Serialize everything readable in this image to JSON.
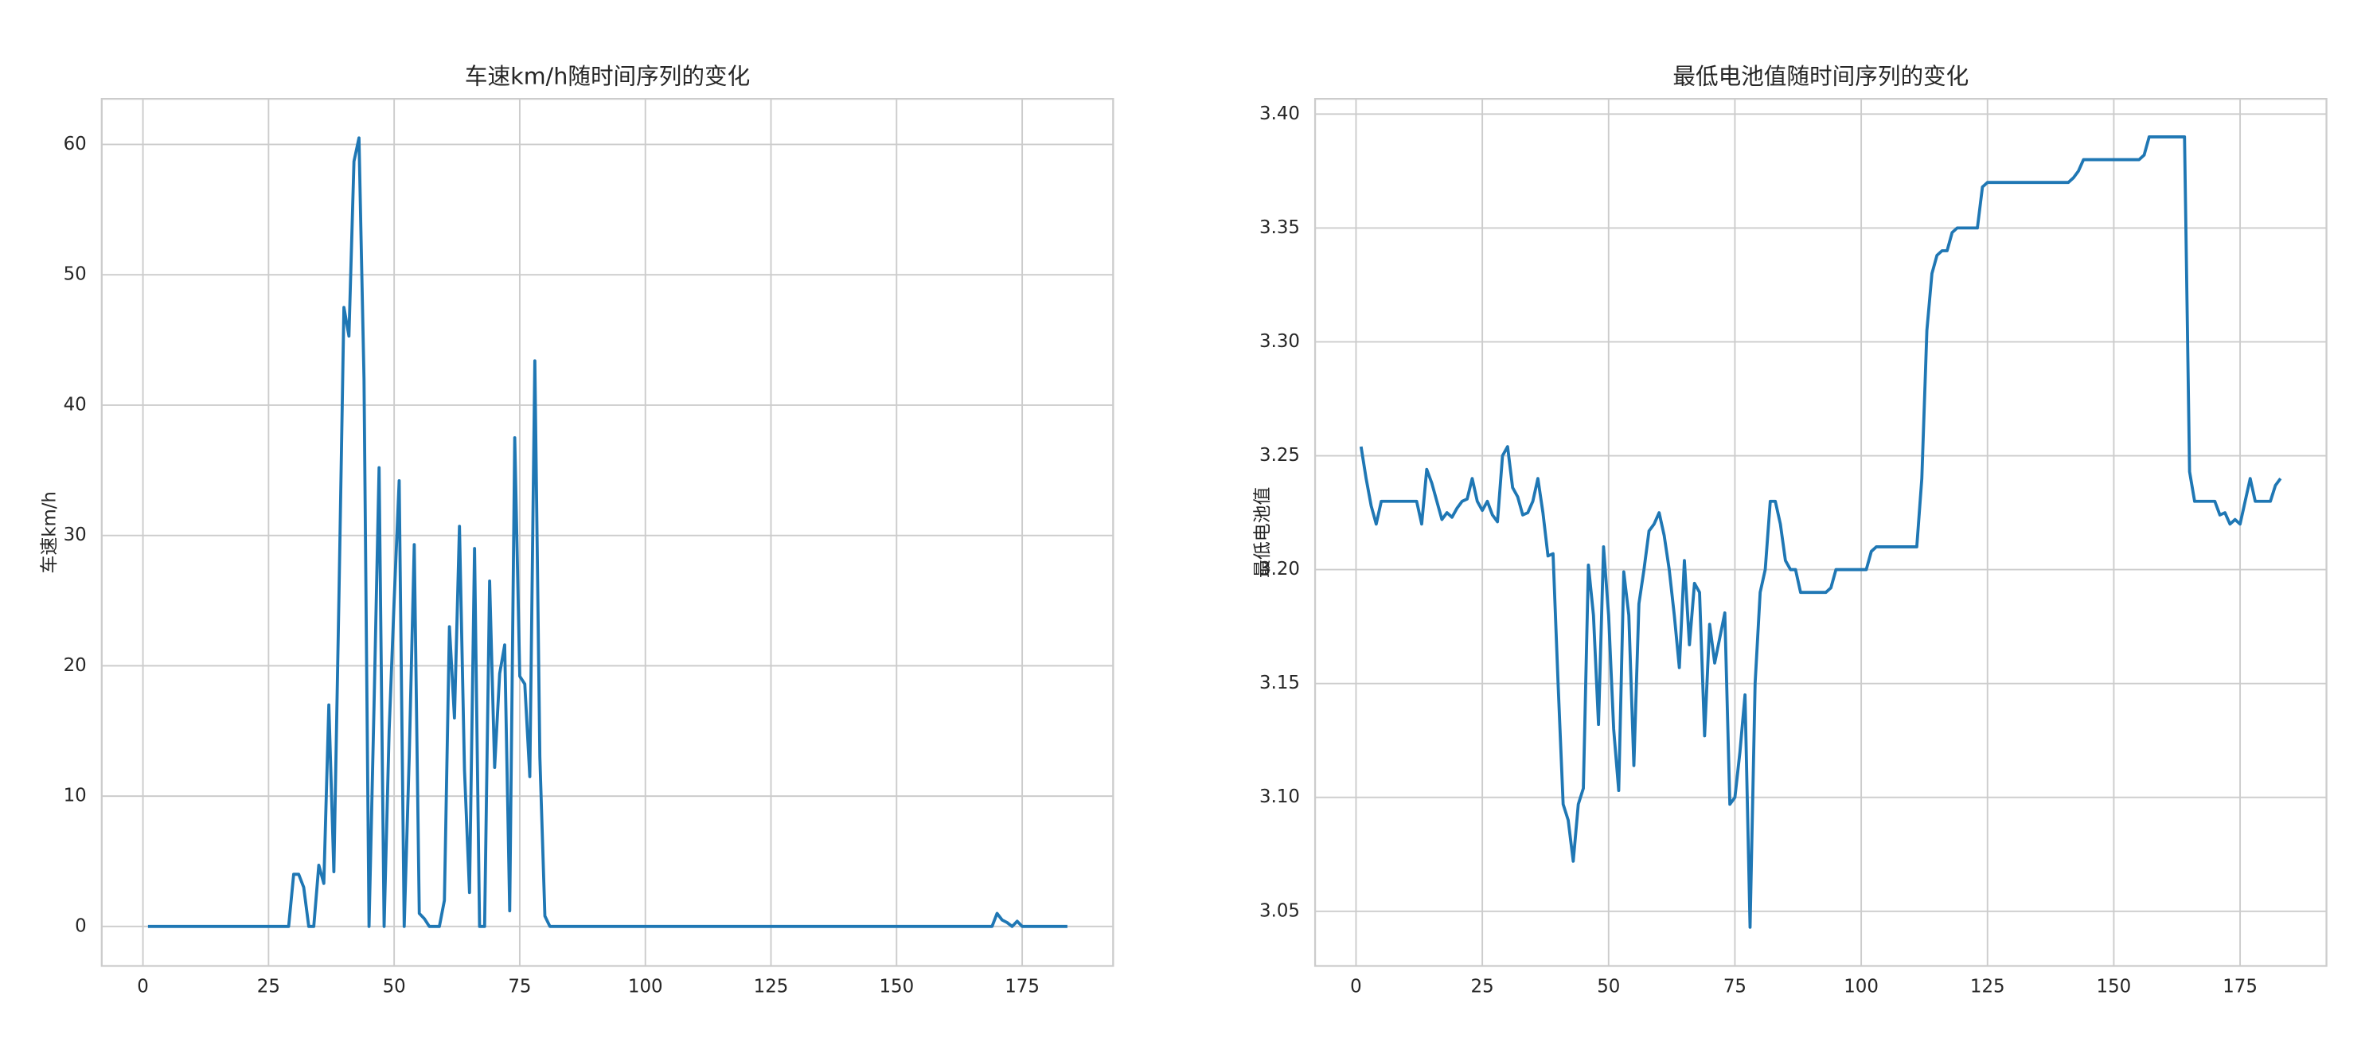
{
  "chart_data": [
    {
      "type": "line",
      "title": "车速km/h随时间序列的变化",
      "ylabel": "车速km/h",
      "color": "#1f77b4",
      "grid": true,
      "x": [
        1,
        2,
        3,
        4,
        5,
        6,
        7,
        8,
        9,
        10,
        11,
        12,
        13,
        14,
        15,
        16,
        17,
        18,
        19,
        20,
        21,
        22,
        23,
        24,
        25,
        26,
        27,
        28,
        29,
        30,
        31,
        32,
        33,
        34,
        35,
        36,
        37,
        38,
        39,
        40,
        41,
        42,
        43,
        44,
        45,
        46,
        47,
        48,
        49,
        50,
        51,
        52,
        53,
        54,
        55,
        56,
        57,
        58,
        59,
        60,
        61,
        62,
        63,
        64,
        65,
        66,
        67,
        68,
        69,
        70,
        71,
        72,
        73,
        74,
        75,
        76,
        77,
        78,
        79,
        80,
        81,
        82,
        83,
        84,
        85,
        86,
        87,
        88,
        89,
        90,
        91,
        92,
        93,
        94,
        95,
        96,
        97,
        98,
        99,
        100,
        101,
        102,
        103,
        104,
        105,
        106,
        107,
        108,
        109,
        110,
        111,
        112,
        113,
        114,
        115,
        116,
        117,
        118,
        119,
        120,
        121,
        122,
        123,
        124,
        125,
        126,
        127,
        128,
        129,
        130,
        131,
        132,
        133,
        134,
        135,
        136,
        137,
        138,
        139,
        140,
        141,
        142,
        143,
        144,
        145,
        146,
        147,
        148,
        149,
        150,
        151,
        152,
        153,
        154,
        155,
        156,
        157,
        158,
        159,
        160,
        161,
        162,
        163,
        164,
        165,
        166,
        167,
        168,
        169,
        170,
        171,
        172,
        173,
        174,
        175,
        176,
        177,
        178,
        179,
        180,
        181,
        182,
        183,
        184
      ],
      "values": [
        0,
        0,
        0,
        0,
        0,
        0,
        0,
        0,
        0,
        0,
        0,
        0,
        0,
        0,
        0,
        0,
        0,
        0,
        0,
        0,
        0,
        0,
        0,
        0,
        0,
        0,
        0,
        0,
        0,
        4,
        4,
        3,
        0,
        0,
        4.7,
        3.3,
        17,
        4.2,
        25,
        47.5,
        45.3,
        58.7,
        60.5,
        42,
        0,
        17,
        35.2,
        0,
        15,
        25,
        34.2,
        0,
        13,
        29.3,
        1,
        0.6,
        0,
        0,
        0,
        2,
        23,
        16,
        30.7,
        12,
        2.6,
        29,
        0,
        0,
        26.5,
        12.2,
        19.4,
        21.6,
        1.2,
        37.5,
        19.2,
        18.6,
        11.5,
        43.4,
        13,
        0.8,
        0,
        0,
        0,
        0,
        0,
        0,
        0,
        0,
        0,
        0,
        0,
        0,
        0,
        0,
        0,
        0,
        0,
        0,
        0,
        0,
        0,
        0,
        0,
        0,
        0,
        0,
        0,
        0,
        0,
        0,
        0,
        0,
        0,
        0,
        0,
        0,
        0,
        0,
        0,
        0,
        0,
        0,
        0,
        0,
        0,
        0,
        0,
        0,
        0,
        0,
        0,
        0,
        0,
        0,
        0,
        0,
        0,
        0,
        0,
        0,
        0,
        0,
        0,
        0,
        0,
        0,
        0,
        0,
        0,
        0,
        0,
        0,
        0,
        0,
        0,
        0,
        0,
        0,
        0,
        0,
        0,
        0,
        0,
        0,
        0,
        0,
        0,
        0,
        0,
        1,
        0.5,
        0.3,
        0,
        0.4,
        0,
        0,
        0,
        0,
        0,
        0,
        0,
        0,
        0,
        0
      ],
      "xlim": [
        -8.2,
        193.1
      ],
      "xticks": [
        0,
        25,
        50,
        75,
        100,
        125,
        150,
        175
      ],
      "ylim": [
        -3.03,
        63.5
      ],
      "yticks": [
        0,
        10,
        20,
        30,
        40,
        50,
        60
      ]
    },
    {
      "type": "line",
      "title": "最低电池值随时间序列的变化",
      "ylabel": "最低电池值",
      "color": "#1f77b4",
      "grid": true,
      "x": [
        1,
        2,
        3,
        4,
        5,
        6,
        7,
        8,
        9,
        10,
        11,
        12,
        13,
        14,
        15,
        16,
        17,
        18,
        19,
        20,
        21,
        22,
        23,
        24,
        25,
        26,
        27,
        28,
        29,
        30,
        31,
        32,
        33,
        34,
        35,
        36,
        37,
        38,
        39,
        40,
        41,
        42,
        43,
        44,
        45,
        46,
        47,
        48,
        49,
        50,
        51,
        52,
        53,
        54,
        55,
        56,
        57,
        58,
        59,
        60,
        61,
        62,
        63,
        64,
        65,
        66,
        67,
        68,
        69,
        70,
        71,
        72,
        73,
        74,
        75,
        76,
        77,
        78,
        79,
        80,
        81,
        82,
        83,
        84,
        85,
        86,
        87,
        88,
        89,
        90,
        91,
        92,
        93,
        94,
        95,
        96,
        97,
        98,
        99,
        100,
        101,
        102,
        103,
        104,
        105,
        106,
        107,
        108,
        109,
        110,
        111,
        112,
        113,
        114,
        115,
        116,
        117,
        118,
        119,
        120,
        121,
        122,
        123,
        124,
        125,
        126,
        127,
        128,
        129,
        130,
        131,
        132,
        133,
        134,
        135,
        136,
        137,
        138,
        139,
        140,
        141,
        142,
        143,
        144,
        145,
        146,
        147,
        148,
        149,
        150,
        151,
        152,
        153,
        154,
        155,
        156,
        157,
        158,
        159,
        160,
        161,
        162,
        163,
        164,
        165,
        166,
        167,
        168,
        169,
        170,
        171,
        172,
        173,
        174,
        175,
        176,
        177,
        178,
        179,
        180,
        181,
        182,
        183
      ],
      "values": [
        3.254,
        3.24,
        3.228,
        3.22,
        3.23,
        3.23,
        3.23,
        3.23,
        3.23,
        3.23,
        3.23,
        3.23,
        3.22,
        3.244,
        3.238,
        3.23,
        3.222,
        3.225,
        3.223,
        3.227,
        3.23,
        3.231,
        3.24,
        3.23,
        3.226,
        3.23,
        3.224,
        3.221,
        3.25,
        3.254,
        3.236,
        3.232,
        3.224,
        3.225,
        3.23,
        3.24,
        3.225,
        3.206,
        3.207,
        3.15,
        3.097,
        3.09,
        3.072,
        3.097,
        3.104,
        3.202,
        3.18,
        3.132,
        3.21,
        3.18,
        3.13,
        3.103,
        3.199,
        3.18,
        3.114,
        3.185,
        3.2,
        3.217,
        3.22,
        3.225,
        3.215,
        3.2,
        3.18,
        3.157,
        3.204,
        3.167,
        3.194,
        3.19,
        3.127,
        3.176,
        3.159,
        3.17,
        3.181,
        3.097,
        3.1,
        3.12,
        3.145,
        3.043,
        3.15,
        3.19,
        3.2,
        3.23,
        3.23,
        3.22,
        3.204,
        3.2,
        3.2,
        3.19,
        3.19,
        3.19,
        3.19,
        3.19,
        3.19,
        3.192,
        3.2,
        3.2,
        3.2,
        3.2,
        3.2,
        3.2,
        3.2,
        3.208,
        3.21,
        3.21,
        3.21,
        3.21,
        3.21,
        3.21,
        3.21,
        3.21,
        3.21,
        3.24,
        3.305,
        3.33,
        3.338,
        3.34,
        3.34,
        3.348,
        3.35,
        3.35,
        3.35,
        3.35,
        3.35,
        3.368,
        3.37,
        3.37,
        3.37,
        3.37,
        3.37,
        3.37,
        3.37,
        3.37,
        3.37,
        3.37,
        3.37,
        3.37,
        3.37,
        3.37,
        3.37,
        3.37,
        3.37,
        3.372,
        3.375,
        3.38,
        3.38,
        3.38,
        3.38,
        3.38,
        3.38,
        3.38,
        3.38,
        3.38,
        3.38,
        3.38,
        3.38,
        3.382,
        3.39,
        3.39,
        3.39,
        3.39,
        3.39,
        3.39,
        3.39,
        3.39,
        3.243,
        3.23,
        3.23,
        3.23,
        3.23,
        3.23,
        3.224,
        3.225,
        3.22,
        3.222,
        3.22,
        3.23,
        3.24,
        3.23,
        3.23,
        3.23,
        3.23,
        3.237,
        3.24
      ],
      "xlim": [
        -8.1,
        192.1
      ],
      "xticks": [
        0,
        25,
        50,
        75,
        100,
        125,
        150,
        175
      ],
      "ylim": [
        3.026,
        3.4067
      ],
      "yticks": [
        3.05,
        {
          "value": 3.1,
          "label": "3.10"
        },
        3.15,
        {
          "value": 3.2,
          "label": "3.20"
        },
        3.25,
        {
          "value": 3.3,
          "label": "3.30"
        },
        3.35,
        {
          "value": 3.4,
          "label": "3.40"
        }
      ]
    }
  ]
}
